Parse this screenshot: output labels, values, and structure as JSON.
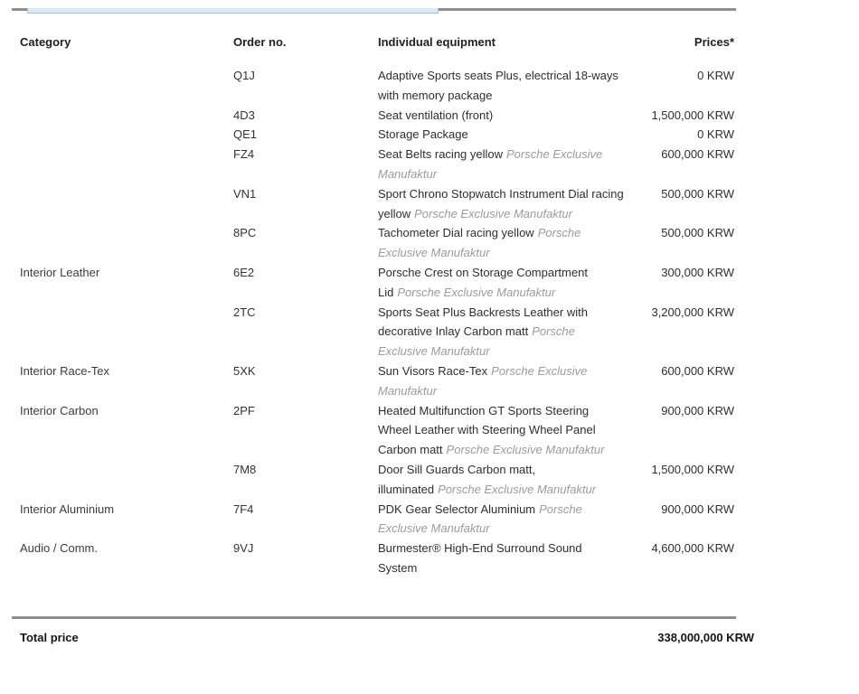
{
  "table": {
    "headers": {
      "category": "Category",
      "order_no": "Order no.",
      "equipment": "Individual equipment",
      "prices": "Prices*"
    },
    "rows": [
      {
        "category": "",
        "order_no": "Q1J",
        "equipment": "Adaptive Sports seats Plus, electrical 18-ways with memory package",
        "suffix": "",
        "price": "0 KRW"
      },
      {
        "category": "",
        "order_no": "4D3",
        "equipment": "Seat ventilation (front)",
        "suffix": "",
        "price": "1,500,000 KRW"
      },
      {
        "category": "",
        "order_no": "QE1",
        "equipment": "Storage Package",
        "suffix": "",
        "price": "0 KRW"
      },
      {
        "category": "",
        "order_no": "FZ4",
        "equipment": "Seat Belts racing yellow",
        "suffix": "Porsche Exclusive Manufaktur",
        "price": "600,000 KRW"
      },
      {
        "category": "",
        "order_no": "VN1",
        "equipment": "Sport Chrono Stopwatch Instrument Dial racing yellow",
        "suffix": "Porsche Exclusive Manufaktur",
        "price": "500,000 KRW"
      },
      {
        "category": "",
        "order_no": "8PC",
        "equipment": "Tachometer Dial racing yellow",
        "suffix": "Porsche Exclusive Manufaktur",
        "price": "500,000 KRW"
      },
      {
        "category": "Interior Leather",
        "order_no": "6E2",
        "equipment": "Porsche Crest on Storage Compartment Lid",
        "suffix": "Porsche Exclusive Manufaktur",
        "price": "300,000 KRW"
      },
      {
        "category": "",
        "order_no": "2TC",
        "equipment": "Sports Seat Plus Backrests Leather with decorative Inlay Carbon matt",
        "suffix": "Porsche Exclusive Manufaktur",
        "price": "3,200,000 KRW"
      },
      {
        "category": "Interior Race-Tex",
        "order_no": "5XK",
        "equipment": "Sun Visors Race-Tex",
        "suffix": "Porsche Exclusive Manufaktur",
        "price": "600,000 KRW"
      },
      {
        "category": "Interior Carbon",
        "order_no": "2PF",
        "equipment": "Heated Multifunction GT Sports Steering Wheel Leather with Steering Wheel Panel Carbon matt",
        "suffix": "Porsche Exclusive Manufaktur",
        "price": "900,000 KRW"
      },
      {
        "category": "",
        "order_no": "7M8",
        "equipment": "Door Sill Guards Carbon matt, illuminated",
        "suffix": "Porsche Exclusive Manufaktur",
        "price": "1,500,000 KRW"
      },
      {
        "category": "Interior Aluminium",
        "order_no": "7F4",
        "equipment": "PDK Gear Selector Aluminium",
        "suffix": "Porsche Exclusive Manufaktur",
        "price": "900,000 KRW"
      },
      {
        "category": "Audio / Comm.",
        "order_no": "9VJ",
        "equipment": "Burmester® High-End Surround Sound System",
        "suffix": "",
        "price": "4,600,000 KRW"
      }
    ],
    "total_label": "Total price",
    "total_value": "338,000,000 KRW"
  }
}
